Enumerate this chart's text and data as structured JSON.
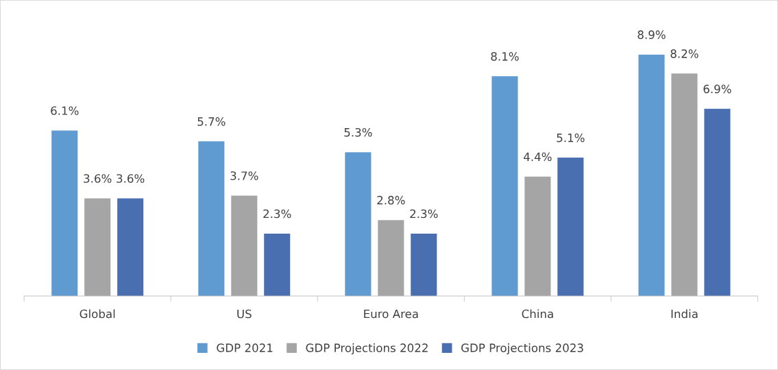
{
  "chart_data": {
    "type": "bar",
    "categories": [
      "Global",
      "US",
      "Euro Area",
      "China",
      "India"
    ],
    "series": [
      {
        "name": "GDP 2021",
        "color": "#5f9bd0",
        "values": [
          6.1,
          5.7,
          5.3,
          8.1,
          8.9
        ],
        "value_labels": [
          "6.1%",
          "5.7%",
          "5.3%",
          "8.1%",
          "8.9%"
        ]
      },
      {
        "name": "GDP Projections 2022",
        "color": "#a5a5a5",
        "values": [
          3.6,
          3.7,
          2.8,
          4.4,
          8.2
        ],
        "value_labels": [
          "3.6%",
          "3.7%",
          "2.8%",
          "4.4%",
          "8.2%"
        ]
      },
      {
        "name": "GDP Projections 2023",
        "color": "#4a6fb0",
        "values": [
          3.6,
          2.3,
          2.3,
          5.1,
          6.9
        ],
        "value_labels": [
          "3.6%",
          "2.3%",
          "2.3%",
          "5.1%",
          "6.9%"
        ]
      }
    ],
    "legend": "bottom",
    "grid": false
  }
}
